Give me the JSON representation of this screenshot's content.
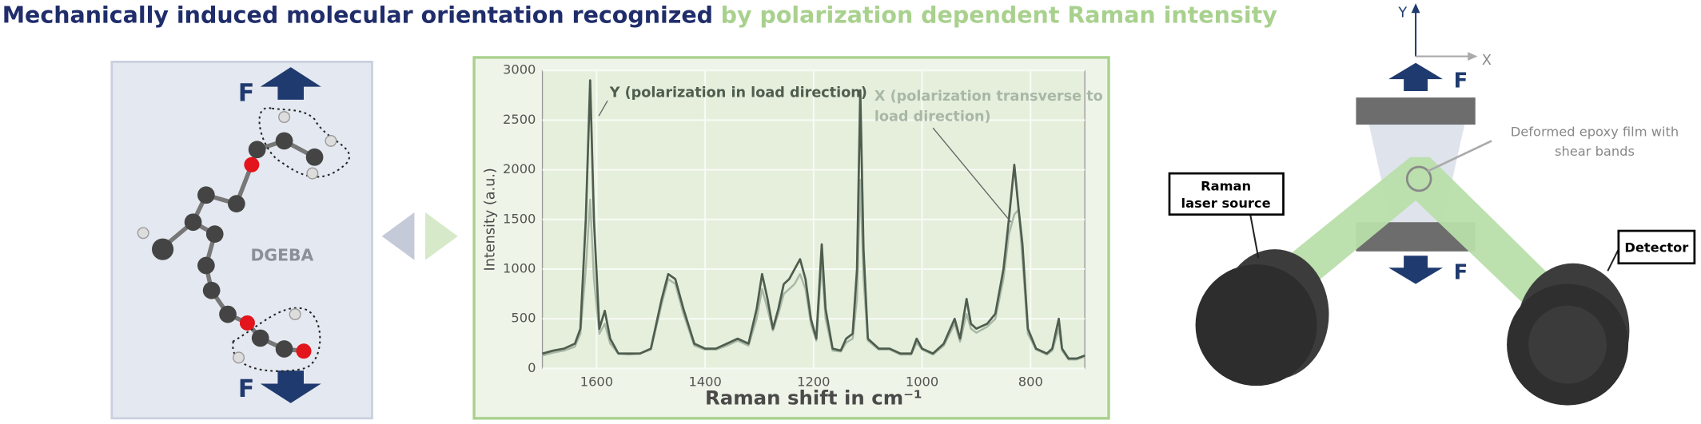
{
  "title": {
    "part1": "Mechanically induced molecular orientation recognized",
    "part2": "by polarization dependent Raman intensity",
    "color1": "#1f2d6b",
    "color2": "#a9d18e"
  },
  "molecule": {
    "force_top": "F",
    "force_bottom": "F",
    "name": "DGEBA"
  },
  "setup": {
    "axis_y": "Y",
    "axis_x": "X",
    "force_top": "F",
    "force_bottom": "F",
    "film_label": [
      "Deformed epoxy film with",
      "shear bands"
    ],
    "source_label": [
      "Raman",
      "laser source"
    ],
    "detector_label": "Detector"
  },
  "chart_data": {
    "type": "line",
    "xlabel": "Raman shift in cm⁻¹",
    "ylabel": "Intensity (a.u.)",
    "annotations": [
      [
        "Y (polarization in load direction)"
      ],
      [
        "X (polarization transverse to",
        "load direction)"
      ]
    ],
    "xlim": [
      1700,
      700
    ],
    "ylim": [
      0,
      3000
    ],
    "xticks": [
      1600,
      1400,
      1200,
      1000,
      800
    ],
    "yticks": [
      0,
      500,
      1000,
      1500,
      2000,
      2500,
      3000
    ],
    "grid": true,
    "x": [
      1700,
      1680,
      1660,
      1640,
      1630,
      1620,
      1612,
      1605,
      1595,
      1585,
      1575,
      1560,
      1540,
      1520,
      1500,
      1480,
      1468,
      1455,
      1440,
      1420,
      1400,
      1380,
      1360,
      1340,
      1320,
      1305,
      1295,
      1285,
      1275,
      1265,
      1255,
      1245,
      1235,
      1225,
      1215,
      1205,
      1195,
      1185,
      1178,
      1165,
      1150,
      1140,
      1128,
      1120,
      1114,
      1108,
      1100,
      1080,
      1060,
      1040,
      1020,
      1010,
      1000,
      980,
      960,
      940,
      930,
      918,
      910,
      900,
      880,
      865,
      850,
      840,
      830,
      822,
      815,
      805,
      790,
      770,
      760,
      748,
      742,
      730,
      715,
      700
    ],
    "series": [
      {
        "name": "Y",
        "color": "#4f5d4f",
        "values": [
          150,
          180,
          200,
          250,
          400,
          1500,
          2900,
          1500,
          400,
          580,
          300,
          150,
          150,
          150,
          200,
          700,
          950,
          900,
          600,
          250,
          200,
          200,
          250,
          300,
          250,
          600,
          950,
          700,
          400,
          600,
          850,
          900,
          1000,
          1100,
          900,
          500,
          300,
          1250,
          600,
          200,
          180,
          300,
          350,
          1000,
          2800,
          1200,
          300,
          200,
          200,
          150,
          150,
          300,
          200,
          150,
          250,
          500,
          300,
          700,
          450,
          400,
          450,
          550,
          1000,
          1500,
          2050,
          1600,
          1250,
          400,
          200,
          150,
          200,
          500,
          200,
          100,
          100,
          130
        ]
      },
      {
        "name": "X",
        "color": "#a9b8a6",
        "values": [
          130,
          160,
          180,
          220,
          350,
          1000,
          1700,
          900,
          350,
          450,
          250,
          150,
          140,
          150,
          190,
          650,
          900,
          850,
          550,
          230,
          190,
          190,
          230,
          280,
          230,
          500,
          800,
          600,
          380,
          550,
          750,
          800,
          850,
          950,
          800,
          450,
          280,
          1050,
          500,
          180,
          170,
          260,
          300,
          700,
          1900,
          900,
          280,
          190,
          190,
          140,
          140,
          260,
          190,
          140,
          230,
          450,
          270,
          550,
          400,
          360,
          420,
          500,
          900,
          1350,
          1550,
          1600,
          1100,
          350,
          190,
          140,
          180,
          400,
          180,
          90,
          90,
          120
        ]
      }
    ]
  }
}
